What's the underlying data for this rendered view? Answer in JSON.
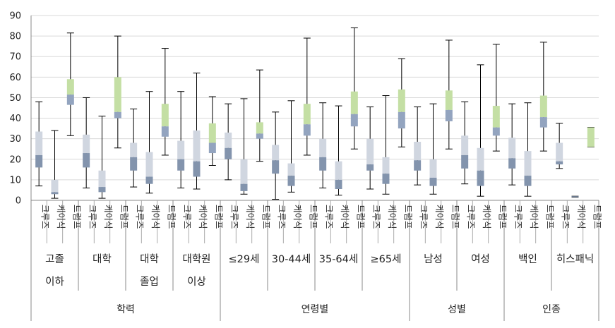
{
  "chart_data": {
    "type": "boxplot",
    "title": "",
    "xlabel": "",
    "ylabel": "",
    "ylim": [
      0,
      90
    ],
    "yticks": [
      0,
      10,
      20,
      30,
      40,
      50,
      60,
      70,
      80,
      90
    ],
    "grid": true,
    "legend": "none",
    "candidates": [
      "크루즈",
      "케이식",
      "트럼프"
    ],
    "colors": {
      "upper_box": "#d0d6e0",
      "lower_box": "#8394ad",
      "trump_upper": "#c4dfa4",
      "trump_lower": "#93a4bf",
      "whisker": "#000000",
      "grid": "#d9d9d9"
    },
    "categories": [
      {
        "group": "학력",
        "label": [
          "고졸",
          "이하"
        ]
      },
      {
        "group": "학력",
        "label": [
          "대학"
        ]
      },
      {
        "group": "학력",
        "label": [
          "대학",
          "졸업"
        ]
      },
      {
        "group": "학력",
        "label": [
          "대학원",
          "이상"
        ]
      },
      {
        "group": "연령별",
        "label": [
          "≤29세"
        ]
      },
      {
        "group": "연령별",
        "label": [
          "30-44세"
        ]
      },
      {
        "group": "연령별",
        "label": [
          "35-64세"
        ]
      },
      {
        "group": "연령별",
        "label": [
          "≥65세"
        ]
      },
      {
        "group": "성별",
        "label": [
          "남성"
        ]
      },
      {
        "group": "성별",
        "label": [
          "여성"
        ]
      },
      {
        "group": "인종",
        "label": [
          "백인"
        ]
      },
      {
        "group": "인종",
        "label": [
          "히스패닉"
        ]
      }
    ],
    "groups": [
      "학력",
      "연령별",
      "성별",
      "인종"
    ],
    "boxes": [
      [
        {
          "min": 7,
          "q1": 16,
          "median": 22,
          "q3": 33.5,
          "max": 48
        },
        {
          "min": 1,
          "q1": 3,
          "median": 4,
          "q3": 10,
          "max": 34
        },
        {
          "min": 31.5,
          "q1": 46.5,
          "median": 51.5,
          "q3": 59,
          "max": 81.5
        }
      ],
      [
        {
          "min": 6,
          "q1": 16,
          "median": 23,
          "q3": 32,
          "max": 50
        },
        {
          "min": 1,
          "q1": 4,
          "median": 6.5,
          "q3": 14.5,
          "max": 41
        },
        {
          "min": 25.5,
          "q1": 40,
          "median": 43,
          "q3": 60,
          "max": 80
        }
      ],
      [
        {
          "min": 6.5,
          "q1": 14.5,
          "median": 21,
          "q3": 28,
          "max": 44.5
        },
        {
          "min": 3.5,
          "q1": 8,
          "median": 11.5,
          "q3": 23.5,
          "max": 53
        },
        {
          "min": 22,
          "q1": 31,
          "median": 36,
          "q3": 47,
          "max": 74
        }
      ],
      [
        {
          "min": 6,
          "q1": 14.5,
          "median": 20,
          "q3": 29,
          "max": 53
        },
        {
          "min": 5.5,
          "q1": 11.5,
          "median": 19,
          "q3": 34,
          "max": 62
        },
        {
          "min": 17,
          "q1": 23,
          "median": 28,
          "q3": 37.5,
          "max": 50.5
        }
      ],
      [
        {
          "min": 10,
          "q1": 20,
          "median": 25.5,
          "q3": 33,
          "max": 47
        },
        {
          "min": 3,
          "q1": 4.5,
          "median": 8,
          "q3": 20,
          "max": 49.5
        },
        {
          "min": 19,
          "q1": 30,
          "median": 32.5,
          "q3": 38,
          "max": 63.5
        }
      ],
      [
        {
          "min": 0.5,
          "q1": 13,
          "median": 19.5,
          "q3": 27,
          "max": 43
        },
        {
          "min": 4,
          "q1": 7,
          "median": 12,
          "q3": 18,
          "max": 48.5
        },
        {
          "min": 22,
          "q1": 31.5,
          "median": 37,
          "q3": 47,
          "max": 79
        }
      ],
      [
        {
          "min": 6,
          "q1": 14.5,
          "median": 21,
          "q3": 30,
          "max": 47.5
        },
        {
          "min": 2.5,
          "q1": 5.5,
          "median": 10,
          "q3": 19,
          "max": 46
        },
        {
          "min": 25,
          "q1": 36,
          "median": 42,
          "q3": 53,
          "max": 84
        }
      ],
      [
        {
          "min": 5.5,
          "q1": 14.5,
          "median": 17.5,
          "q3": 30,
          "max": 45.5
        },
        {
          "min": 3,
          "q1": 8,
          "median": 13,
          "q3": 21,
          "max": 51
        },
        {
          "min": 26,
          "q1": 35,
          "median": 43,
          "q3": 54,
          "max": 69
        }
      ],
      [
        {
          "min": 7.5,
          "q1": 14.5,
          "median": 19.5,
          "q3": 28.5,
          "max": 45.5
        },
        {
          "min": 3,
          "q1": 7,
          "median": 11,
          "q3": 20,
          "max": 47
        },
        {
          "min": 25,
          "q1": 38.5,
          "median": 44,
          "q3": 53.5,
          "max": 78
        }
      ],
      [
        {
          "min": 8,
          "q1": 15.5,
          "median": 22,
          "q3": 31.5,
          "max": 48
        },
        {
          "min": 2,
          "q1": 7,
          "median": 14.5,
          "q3": 25.5,
          "max": 66
        },
        {
          "min": 24,
          "q1": 31.5,
          "median": 35.5,
          "q3": 46,
          "max": 76
        }
      ],
      [
        {
          "min": 7.5,
          "q1": 15.5,
          "median": 20.5,
          "q3": 30.5,
          "max": 47
        },
        {
          "min": 2,
          "q1": 7,
          "median": 12,
          "q3": 24,
          "max": 47.5
        },
        {
          "min": 24,
          "q1": 35.5,
          "median": 40.5,
          "q3": 51,
          "max": 77
        }
      ],
      [
        {
          "min": 15.5,
          "q1": 17.5,
          "median": 19,
          "q3": 28,
          "max": 37.5
        },
        {
          "min": 1.5,
          "q1": 1.5,
          "median": 2,
          "q3": 2,
          "max": 2
        },
        {
          "min": 26,
          "q1": 26,
          "median": 26,
          "q3": 35.5,
          "max": 35.5
        }
      ]
    ]
  }
}
